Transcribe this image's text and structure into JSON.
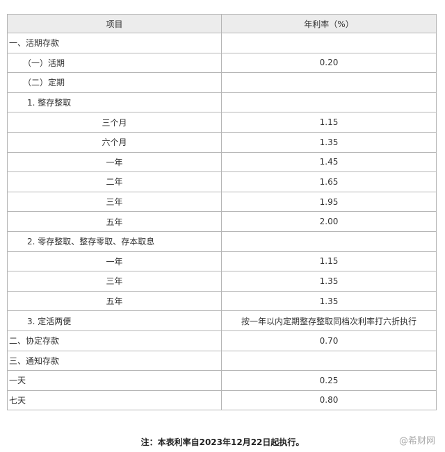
{
  "table": {
    "header": [
      "项目",
      "年利率（%）"
    ],
    "rows": [
      [
        "一、活期存款",
        ""
      ],
      [
        "（一）活期",
        "0.20"
      ],
      [
        "（二）定期",
        ""
      ],
      [
        "1. 整存整取",
        ""
      ],
      [
        "三个月",
        "1.15"
      ],
      [
        "六个月",
        "1.35"
      ],
      [
        "一年",
        "1.45"
      ],
      [
        "二年",
        "1.65"
      ],
      [
        "三年",
        "1.95"
      ],
      [
        "五年",
        "2.00"
      ],
      [
        "2. 零存整取、整存零取、存本取息",
        ""
      ],
      [
        "一年",
        "1.15"
      ],
      [
        "三年",
        "1.35"
      ],
      [
        "五年",
        "1.35"
      ],
      [
        "3. 定活两便",
        "按一年以内定期整存整取同档次利率打六折执行"
      ],
      [
        "二、协定存款",
        "0.70"
      ],
      [
        "三、通知存款",
        ""
      ],
      [
        "一天",
        "0.25"
      ],
      [
        "七天",
        "0.80"
      ]
    ]
  },
  "note": "注：本表利率自2023年12月22日起执行。",
  "watermark": "@希财网"
}
